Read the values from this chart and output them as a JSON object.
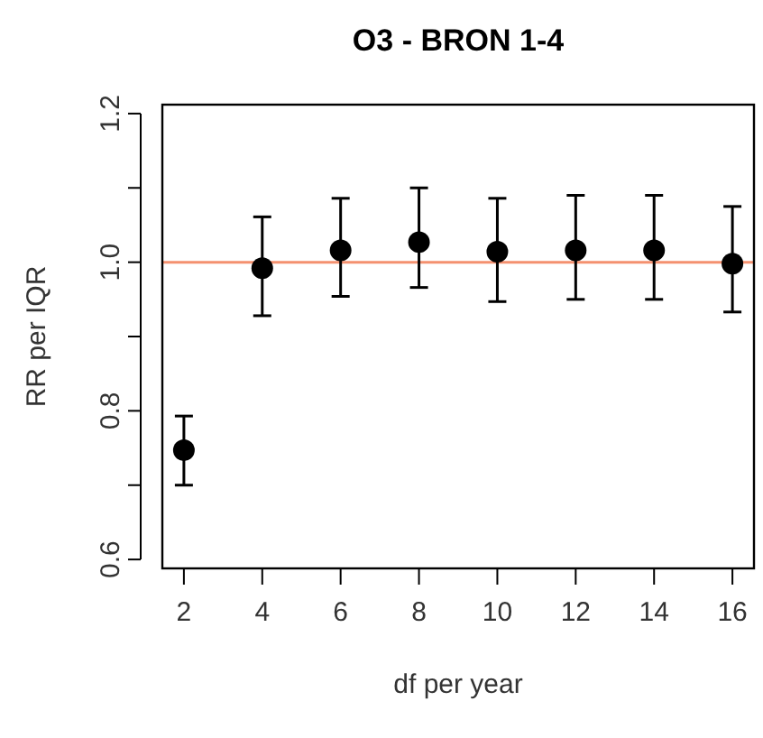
{
  "chart_data": {
    "type": "scatter",
    "title": "O3 - BRON 1-4",
    "xlabel": "df per year",
    "ylabel": "RR per IQR",
    "x": [
      2,
      4,
      6,
      8,
      10,
      12,
      14,
      16
    ],
    "values": [
      0.747,
      0.992,
      1.016,
      1.027,
      1.014,
      1.016,
      1.016,
      0.998
    ],
    "errors": [
      [
        0.7,
        0.793
      ],
      [
        0.928,
        1.061
      ],
      [
        0.954,
        1.086
      ],
      [
        0.966,
        1.1
      ],
      [
        0.947,
        1.086
      ],
      [
        0.95,
        1.09
      ],
      [
        0.95,
        1.09
      ],
      [
        0.933,
        1.075
      ]
    ],
    "color": "#000000",
    "marker": "circle",
    "xlim": [
      1.45,
      16.55
    ],
    "xticks": [
      2,
      4,
      6,
      8,
      10,
      12,
      14,
      16
    ],
    "ylim": [
      0.588,
      1.212
    ],
    "yticks": [
      0.6,
      {
        "value": 0.7,
        "label": null
      },
      0.8,
      {
        "value": 0.9,
        "label": null
      },
      {
        "value": 1.0,
        "label": "1.0"
      },
      {
        "value": 1.1,
        "label": null
      },
      1.2
    ],
    "ref_lines": [
      {
        "axis": "y",
        "value": 1.0,
        "color": "#f4916f"
      }
    ]
  }
}
